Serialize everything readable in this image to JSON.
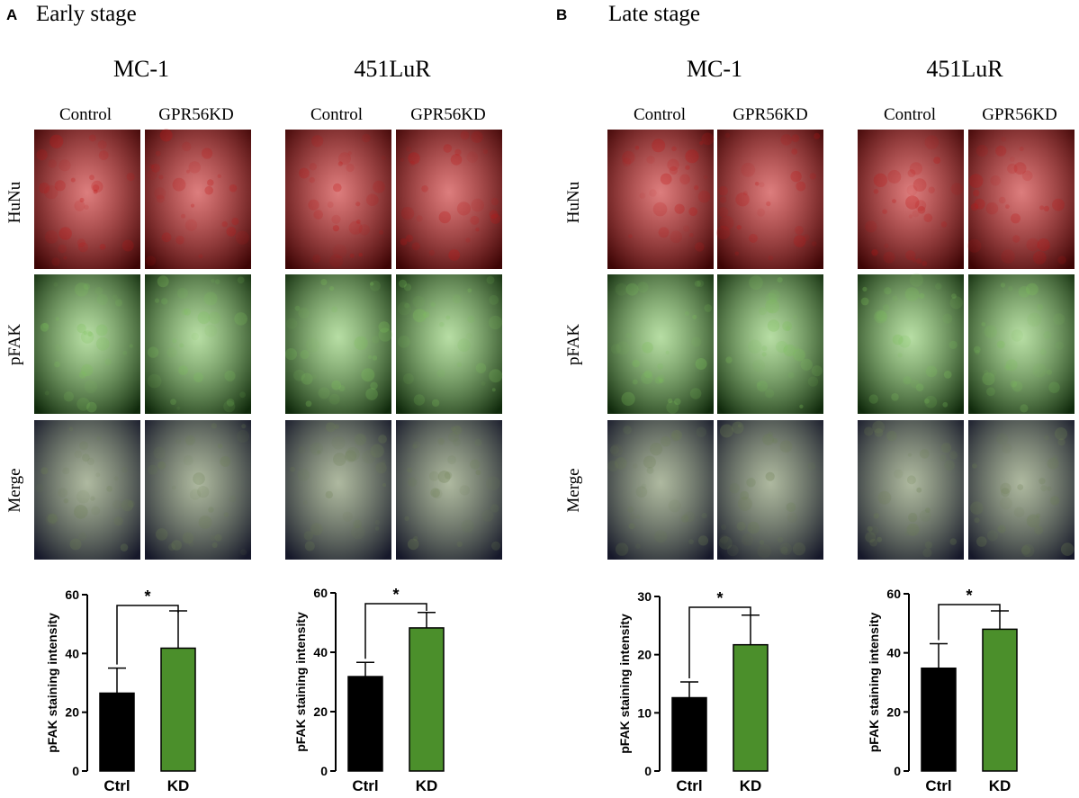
{
  "colors": {
    "ctrl_bar": "#000000",
    "kd_bar": "#4b8f2b",
    "huNu_base": "#3d0505",
    "huNu_spot": "#c01414",
    "pfak_base": "#102a0c",
    "pfak_spot": "#7cc25a",
    "merge_base": "#16182a",
    "merge_spot": "#6c7f52"
  },
  "panels": [
    {
      "letter": "A",
      "stage": "Early stage",
      "cell_lines": [
        {
          "name": "MC-1",
          "col_labels": [
            "Control",
            "GPR56KD"
          ]
        },
        {
          "name": "451LuR",
          "col_labels": [
            "Control",
            "GPR56KD"
          ]
        }
      ]
    },
    {
      "letter": "B",
      "stage": "Late stage",
      "cell_lines": [
        {
          "name": "MC-1",
          "col_labels": [
            "Control",
            "GPR56KD"
          ]
        },
        {
          "name": "451LuR",
          "col_labels": [
            "Control",
            "GPR56KD"
          ]
        }
      ]
    }
  ],
  "row_labels": [
    "HuNu",
    "pFAK",
    "Merge"
  ],
  "chart_data": [
    {
      "type": "bar",
      "ylabel": "pFAK staining intensity",
      "categories": [
        "Ctrl",
        "KD"
      ],
      "values": [
        26.5,
        41.8
      ],
      "errors": [
        8.5,
        12.7
      ],
      "ylim": [
        0,
        60
      ],
      "yticks": [
        "0",
        "20",
        "40",
        "60"
      ],
      "significance": "*"
    },
    {
      "type": "bar",
      "ylabel": "pFAK staining intensity",
      "categories": [
        "Ctrl",
        "KD"
      ],
      "values": [
        31.8,
        48.2
      ],
      "errors": [
        4.8,
        5.2
      ],
      "ylim": [
        0,
        60
      ],
      "yticks": [
        "0",
        "20",
        "40",
        "60"
      ],
      "significance": "*"
    },
    {
      "type": "bar",
      "ylabel": "pFAK staining intensity",
      "categories": [
        "Ctrl",
        "KD"
      ],
      "values": [
        12.6,
        21.7
      ],
      "errors": [
        2.7,
        5.1
      ],
      "ylim": [
        0,
        30
      ],
      "yticks": [
        "0",
        "10",
        "20",
        "30"
      ],
      "significance": "*"
    },
    {
      "type": "bar",
      "ylabel": "pFAK staining intensity",
      "categories": [
        "Ctrl",
        "KD"
      ],
      "values": [
        34.8,
        48.0
      ],
      "errors": [
        8.3,
        6.2
      ],
      "ylim": [
        0,
        60
      ],
      "yticks": [
        "0",
        "20",
        "40",
        "60"
      ],
      "significance": "*"
    }
  ]
}
